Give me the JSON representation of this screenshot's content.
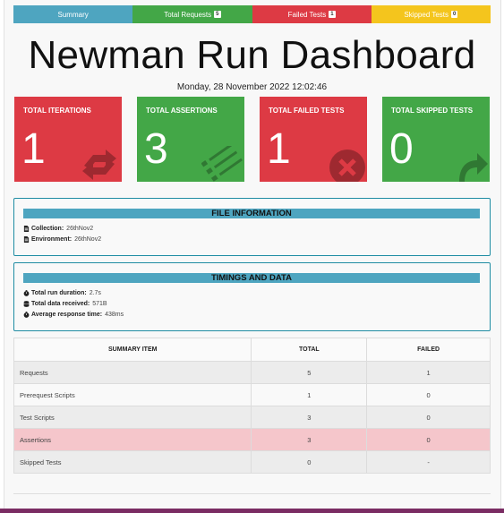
{
  "tabs": [
    {
      "label": "Summary"
    },
    {
      "label": "Total Requests",
      "badge": "5"
    },
    {
      "label": "Failed Tests",
      "badge": "1"
    },
    {
      "label": "Skipped Tests",
      "badge": "0"
    }
  ],
  "title": "Newman Run Dashboard",
  "date": "Monday, 28 November 2022 12:02:46",
  "cards": [
    {
      "label": "TOTAL ITERATIONS",
      "value": "1",
      "color": "#dd3a44",
      "icon": "refresh-icon"
    },
    {
      "label": "TOTAL ASSERTIONS",
      "value": "3",
      "color": "#43a747",
      "icon": "tasks-icon"
    },
    {
      "label": "TOTAL FAILED TESTS",
      "value": "1",
      "color": "#dd3a44",
      "icon": "times-circle-icon"
    },
    {
      "label": "TOTAL SKIPPED TESTS",
      "value": "0",
      "color": "#43a747",
      "icon": "share-arrow-icon"
    }
  ],
  "file_info": {
    "heading": "FILE INFORMATION",
    "collection_label": "Collection:",
    "collection_value": "26thNov2",
    "environment_label": "Environment:",
    "environment_value": "26thNov2"
  },
  "timings": {
    "heading": "TIMINGS AND DATA",
    "duration_label": "Total run duration:",
    "duration_value": "2.7s",
    "data_label": "Total data received:",
    "data_value": "571B",
    "response_label": "Average response time:",
    "response_value": "438ms"
  },
  "summary_table": {
    "headers": [
      "SUMMARY ITEM",
      "TOTAL",
      "FAILED"
    ],
    "rows": [
      {
        "item": "Requests",
        "total": "5",
        "failed": "1"
      },
      {
        "item": "Prerequest Scripts",
        "total": "1",
        "failed": "0"
      },
      {
        "item": "Test Scripts",
        "total": "3",
        "failed": "0"
      },
      {
        "item": "Assertions",
        "total": "3",
        "failed": "0"
      },
      {
        "item": "Skipped Tests",
        "total": "0",
        "failed": "-"
      }
    ]
  },
  "colors": {
    "info": "#4ea5c0",
    "success": "#43a747",
    "danger": "#dd3a44",
    "warning": "#f4c51d"
  }
}
